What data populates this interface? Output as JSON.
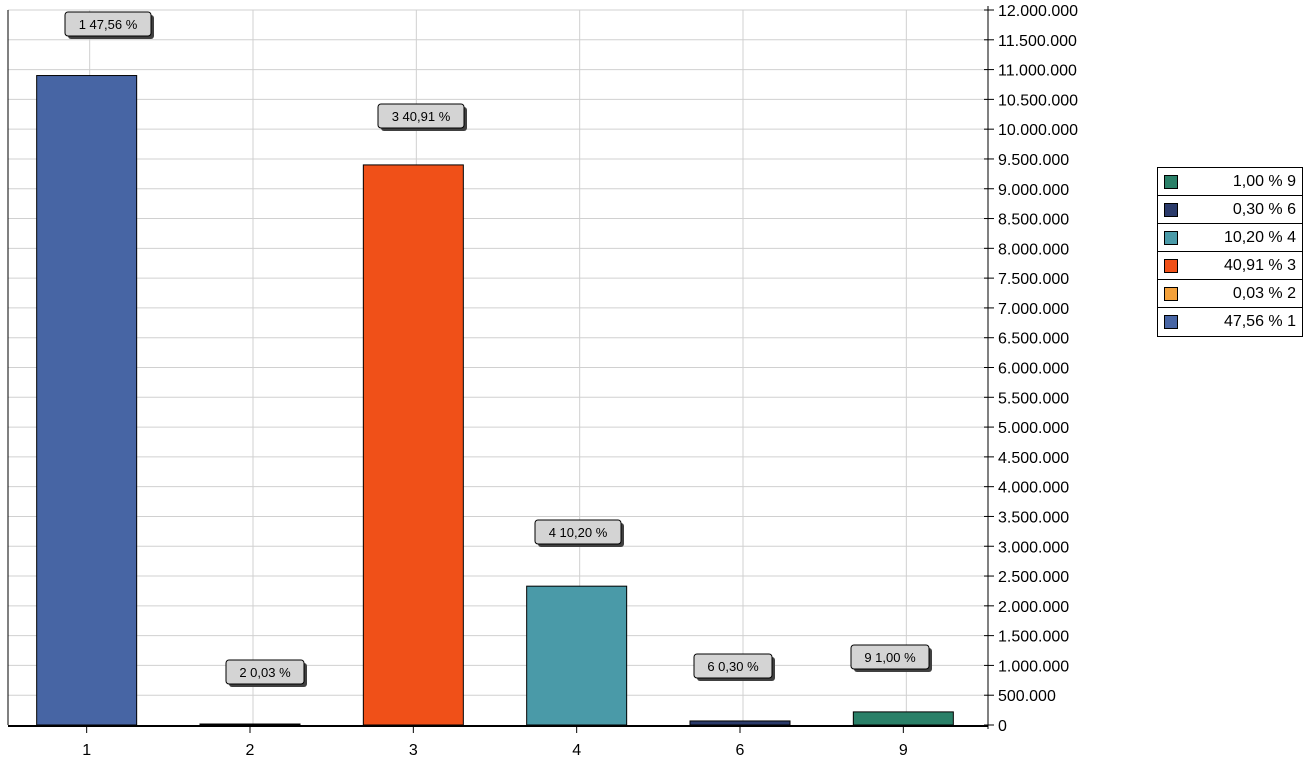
{
  "chart_data": {
    "type": "bar",
    "title": "",
    "xlabel": "",
    "ylabel": "",
    "categories": [
      "1",
      "2",
      "3",
      "4",
      "6",
      "9"
    ],
    "values": [
      10900000,
      3000,
      9400000,
      2330000,
      68000,
      220000
    ],
    "colors": [
      "#4765a4",
      "#f4a13a",
      "#f05018",
      "#4a9aa8",
      "#2a3a6a",
      "#2a8068"
    ],
    "data_labels": [
      "1 47,56 %",
      "2 0,03 %",
      "3 40,91 %",
      "4 10,20 %",
      "6 0,30 %",
      "9 1,00 %"
    ],
    "y_axis_side": "right",
    "ylim": [
      0,
      12000000
    ],
    "y_ticks": [
      0,
      500000,
      1000000,
      1500000,
      2000000,
      2500000,
      3000000,
      3500000,
      4000000,
      4500000,
      5000000,
      5500000,
      6000000,
      6500000,
      7000000,
      7500000,
      8000000,
      8500000,
      9000000,
      9500000,
      10000000,
      10500000,
      11000000,
      11500000,
      12000000
    ],
    "y_tick_labels": [
      "0",
      "500.000",
      "1.000.000",
      "1.500.000",
      "2.000.000",
      "2.500.000",
      "3.000.000",
      "3.500.000",
      "4.000.000",
      "4.500.000",
      "5.000.000",
      "5.500.000",
      "6.000.000",
      "6.500.000",
      "7.000.000",
      "7.500.000",
      "8.000.000",
      "8.500.000",
      "9.000.000",
      "9.500.000",
      "10.000.000",
      "10.500.000",
      "11.000.000",
      "11.500.000",
      "12.000.000"
    ],
    "grid": true,
    "legend_position": "right",
    "legend": [
      {
        "label": "1,00 % 9",
        "color": "#2a8068"
      },
      {
        "label": "0,30 % 6",
        "color": "#2a3a6a"
      },
      {
        "label": "10,20 % 4",
        "color": "#4a9aa8"
      },
      {
        "label": "40,91 % 3",
        "color": "#f05018"
      },
      {
        "label": "0,03 % 2",
        "color": "#f4a13a"
      },
      {
        "label": "47,56 % 1",
        "color": "#4765a4"
      }
    ]
  }
}
